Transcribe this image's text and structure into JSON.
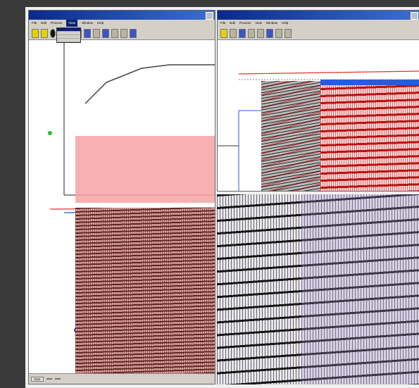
{
  "left_window": {
    "menu": [
      "File",
      "Edit",
      "Process",
      "View",
      "Window",
      "Help"
    ],
    "dropdown_items": [
      "",
      "",
      "",
      ""
    ],
    "taskbar": [
      "Start",
      "",
      ""
    ]
  },
  "right_window": {
    "menu": [
      "File",
      "Edit",
      "Process",
      "View",
      "Window",
      "Help"
    ]
  }
}
